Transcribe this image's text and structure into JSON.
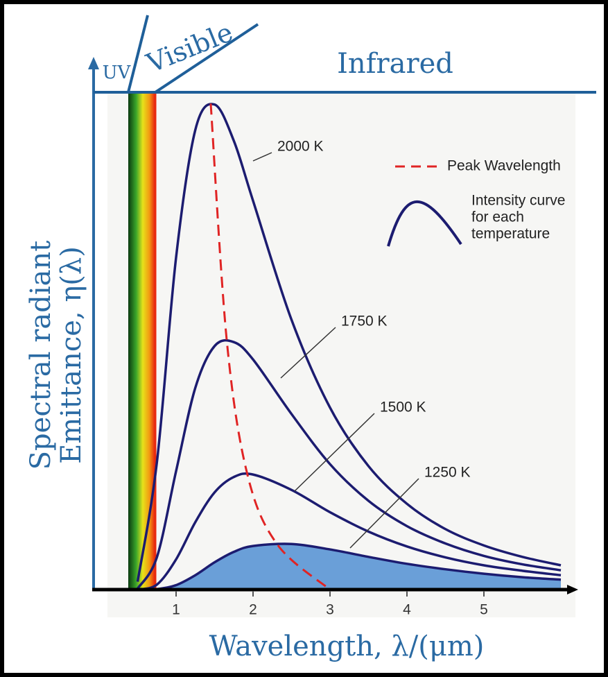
{
  "chart_data": {
    "type": "line",
    "x_label": "Wavelength, λ/(μm)",
    "y_label": [
      "Spectral radiant",
      "Emittance, η(λ)"
    ],
    "regions": [
      "UV",
      "Visible",
      "Infrared"
    ],
    "xlim": [
      0,
      6.2
    ],
    "xticks": [
      1,
      2,
      3,
      4,
      5
    ],
    "ylim": [
      0,
      100
    ],
    "x": [
      0.5,
      0.75,
      1,
      1.25,
      1.5,
      1.75,
      2,
      2.5,
      3,
      3.5,
      4,
      4.5,
      5,
      5.5,
      6
    ],
    "series": [
      {
        "name": "2000 K",
        "color": "#1c1c70",
        "values": [
          1.6,
          25.6,
          67.0,
          92.7,
          97.8,
          90.5,
          78.4,
          54.4,
          36.7,
          24.9,
          17.3,
          12.2,
          8.9,
          6.6,
          4.9
        ]
      },
      {
        "name": "1750 K",
        "color": "#1c1c70",
        "values": [
          0.2,
          6.5,
          23.9,
          40.7,
          49.1,
          49.9,
          46.4,
          35.4,
          25.3,
          17.9,
          12.8,
          9.3,
          6.8,
          5.1,
          3.9
        ]
      },
      {
        "name": "1500 K",
        "color": "#1c1c70",
        "values": [
          0,
          1.0,
          6.1,
          13.6,
          19.6,
          22.7,
          23.2,
          20.1,
          15.6,
          11.7,
          8.7,
          6.5,
          4.9,
          3.8,
          2.9
        ]
      },
      {
        "name": "1250 K",
        "color": "#1c1c70",
        "fill": "#6a9fd8",
        "values": [
          0,
          0.1,
          0.9,
          2.9,
          5.5,
          7.6,
          8.8,
          9.2,
          8.1,
          6.6,
          5.2,
          4.1,
          3.2,
          2.5,
          2.0
        ]
      },
      {
        "name": "Peak Wavelength",
        "color": "#e02424",
        "dashed": true,
        "x": [
          1.45,
          1.66,
          1.93,
          2.32,
          3.0
        ],
        "values": [
          98,
          50,
          23,
          9,
          0
        ]
      }
    ],
    "legend_note": [
      "Intensity curve",
      "for each",
      "temperature"
    ]
  }
}
